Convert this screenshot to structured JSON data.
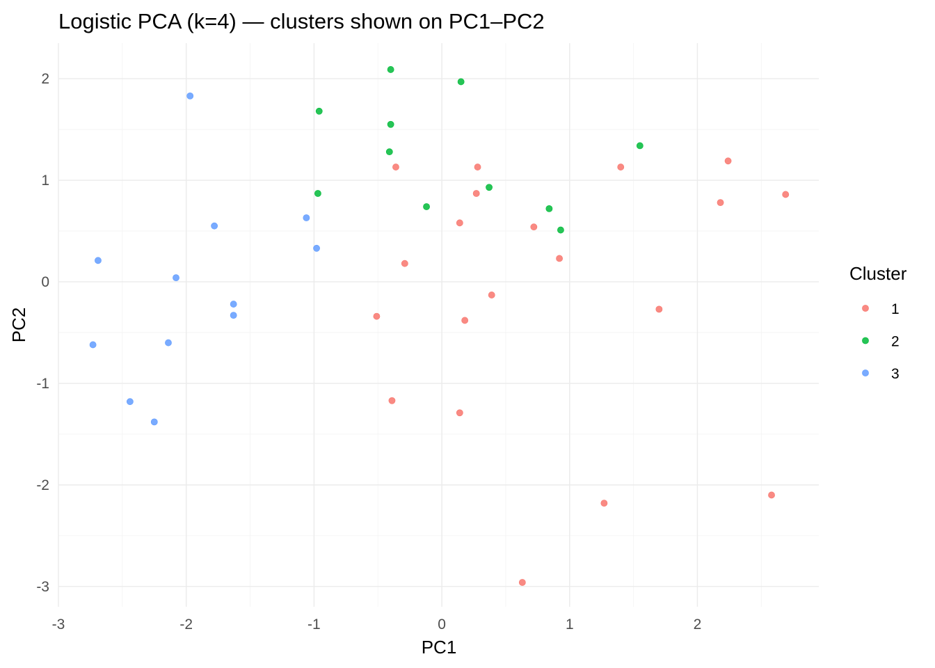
{
  "chart_data": {
    "type": "scatter",
    "title": "Logistic PCA (k=4) — clusters shown on PC1–PC2",
    "xlabel": "PC1",
    "ylabel": "PC2",
    "xlim": [
      -3.0,
      2.95
    ],
    "ylim": [
      -3.2,
      2.35
    ],
    "x_ticks": [
      -3,
      -2,
      -1,
      0,
      1,
      2
    ],
    "y_ticks": [
      -3,
      -2,
      -1,
      0,
      1,
      2
    ],
    "x_tick_labels": [
      "-3",
      "-2",
      "-1",
      "0",
      "1",
      "2"
    ],
    "y_tick_labels": [
      "-3",
      "-2",
      "-1",
      "0",
      "1",
      "2"
    ],
    "grid": true,
    "legend": {
      "title": "Cluster",
      "position": "right"
    },
    "series": [
      {
        "name": "1",
        "color": "#F8766D",
        "points": [
          [
            -0.36,
            1.13
          ],
          [
            0.28,
            1.13
          ],
          [
            1.4,
            1.13
          ],
          [
            2.24,
            1.19
          ],
          [
            0.27,
            0.87
          ],
          [
            2.18,
            0.78
          ],
          [
            2.69,
            0.86
          ],
          [
            0.14,
            0.58
          ],
          [
            0.72,
            0.54
          ],
          [
            -0.29,
            0.18
          ],
          [
            0.92,
            0.23
          ],
          [
            0.39,
            -0.13
          ],
          [
            -0.51,
            -0.34
          ],
          [
            0.18,
            -0.38
          ],
          [
            1.7,
            -0.27
          ],
          [
            -0.39,
            -1.17
          ],
          [
            0.14,
            -1.29
          ],
          [
            1.27,
            -2.18
          ],
          [
            2.58,
            -2.1
          ],
          [
            0.63,
            -2.96
          ]
        ]
      },
      {
        "name": "2",
        "color": "#00BA38",
        "points": [
          [
            -0.4,
            2.09
          ],
          [
            0.15,
            1.97
          ],
          [
            -0.96,
            1.68
          ],
          [
            -0.4,
            1.55
          ],
          [
            -0.41,
            1.28
          ],
          [
            1.55,
            1.34
          ],
          [
            -0.97,
            0.87
          ],
          [
            0.37,
            0.93
          ],
          [
            -0.12,
            0.74
          ],
          [
            0.84,
            0.72
          ],
          [
            0.93,
            0.51
          ]
        ]
      },
      {
        "name": "3",
        "color": "#619CFF",
        "points": [
          [
            -1.97,
            1.83
          ],
          [
            -1.78,
            0.55
          ],
          [
            -1.06,
            0.63
          ],
          [
            -0.98,
            0.33
          ],
          [
            -2.69,
            0.21
          ],
          [
            -2.08,
            0.04
          ],
          [
            -1.63,
            -0.22
          ],
          [
            -1.63,
            -0.33
          ],
          [
            -2.73,
            -0.62
          ],
          [
            -2.14,
            -0.6
          ],
          [
            -2.44,
            -1.18
          ],
          [
            -2.25,
            -1.38
          ]
        ]
      }
    ]
  }
}
